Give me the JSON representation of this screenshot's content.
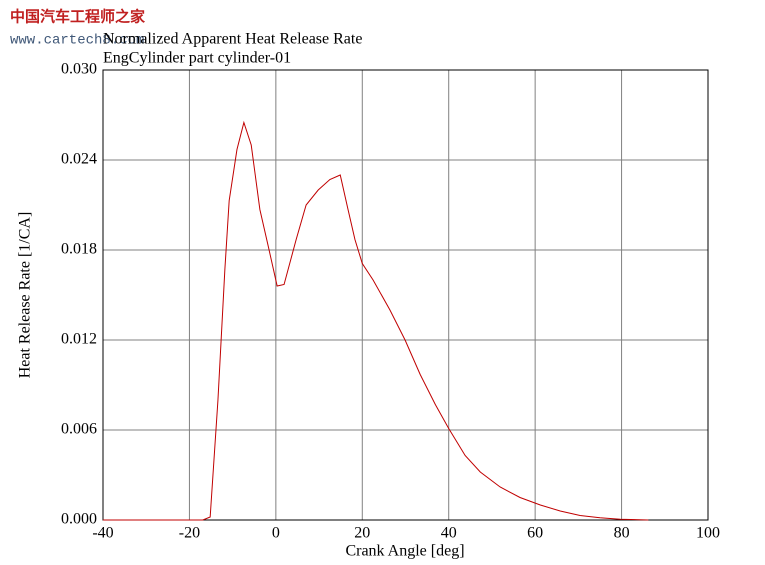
{
  "chart_data": {
    "type": "line",
    "annotations": [
      "中国汽车工程师之家",
      "www.cartech8.com"
    ],
    "title": "Normalized Apparent Heat Release Rate",
    "subtitle": "EngCylinder part cylinder-01",
    "x_label": "Crank Angle [deg]",
    "y_label": "Heat Release Rate [1/CA]",
    "x": [
      -40,
      -16.9,
      -15.2,
      -13.4,
      -11.8,
      -10.8,
      -9.0,
      -7.4,
      -5.7,
      -3.7,
      -1.8,
      0.3,
      1.9,
      4.7,
      7.0,
      9.8,
      12.5,
      14.9,
      16.7,
      18.3,
      20,
      22.5,
      26.4,
      29.9,
      33.4,
      36.9,
      40,
      43.8,
      47.3,
      51.9,
      56.5,
      61.2,
      65.8,
      70.4,
      75,
      79.7,
      86.2
    ],
    "series": [
      {
        "color": "#c00000",
        "values": [
          0,
          0,
          0.0002,
          0.008,
          0.0167,
          0.0213,
          0.0247,
          0.0265,
          0.025,
          0.0207,
          0.0183,
          0.0156,
          0.0157,
          0.0187,
          0.021,
          0.022,
          0.0227,
          0.023,
          0.0207,
          0.0187,
          0.0171,
          0.016,
          0.014,
          0.012,
          0.0097,
          0.0077,
          0.0061,
          0.0043,
          0.0032,
          0.0022,
          0.0015,
          0.001,
          0.0006,
          0.0003,
          0.00015,
          5e-05,
          0
        ]
      }
    ],
    "xlim": [
      -40,
      100
    ],
    "xticks": [
      -40,
      -20,
      0,
      20,
      40,
      60,
      80,
      100
    ],
    "ylim": [
      0,
      0.03
    ],
    "yticks": [
      {
        "value": 0,
        "label": "0.000"
      },
      0.006,
      0.012,
      0.018,
      0.024,
      {
        "value": 0.03,
        "label": "0.030"
      }
    ],
    "grid": true
  }
}
